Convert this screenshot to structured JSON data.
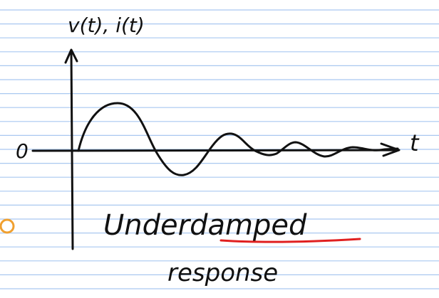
{
  "labels": {
    "y_axis": "v(t), i(t)",
    "origin": "0",
    "x_axis": "t",
    "caption_line1": "Underdamped",
    "caption_line2": "response"
  }
}
